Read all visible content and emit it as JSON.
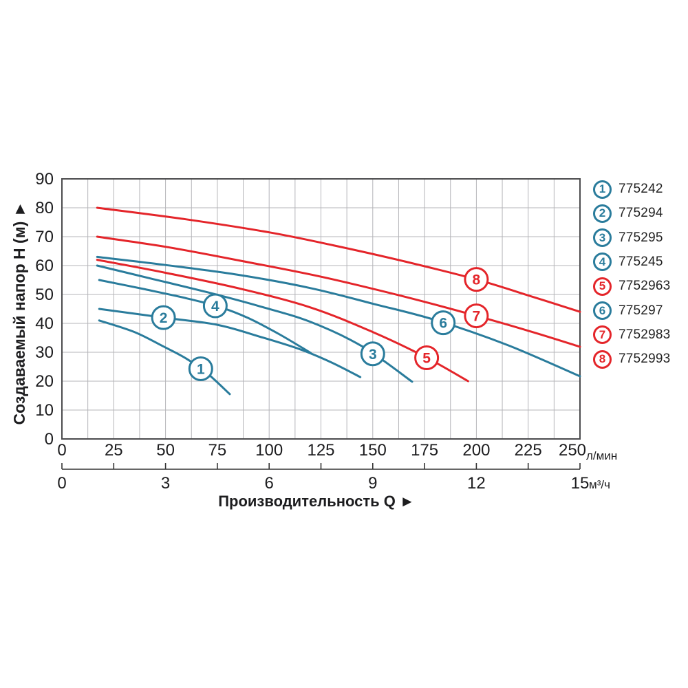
{
  "page": {
    "background": "#ffffff"
  },
  "chart_data": {
    "type": "line",
    "title": "",
    "y_axis": {
      "title": "Создаваемый напор H (м) ►",
      "range": [
        0,
        90
      ],
      "tick_step": 10,
      "ticks": [
        0,
        10,
        20,
        30,
        40,
        50,
        60,
        70,
        80,
        90
      ],
      "grid": true
    },
    "x_axis": {
      "title": "Производительность Q ►",
      "primary": {
        "unit": "л/мин",
        "range": [
          0,
          250
        ],
        "tick_step": 25,
        "ticks": [
          0,
          25,
          50,
          75,
          100,
          125,
          150,
          175,
          200,
          225,
          250
        ],
        "minor_grid_step": 12.5
      },
      "secondary": {
        "unit": "м³/ч",
        "range": [
          0,
          15
        ],
        "labeled_ticks": [
          0,
          3,
          6,
          9,
          12,
          15
        ],
        "minor_tick_step": 1.5
      }
    },
    "legend_position": "right",
    "series": [
      {
        "num": 1,
        "article": "775242",
        "color_key": "teal",
        "marker_q": 67,
        "points_lmin_m": [
          [
            18,
            41
          ],
          [
            35,
            37
          ],
          [
            49,
            32
          ],
          [
            60,
            27.8
          ],
          [
            70,
            22.8
          ],
          [
            81,
            15.5
          ]
        ]
      },
      {
        "num": 2,
        "article": "775294",
        "color_key": "teal",
        "marker_q": 49,
        "points_lmin_m": [
          [
            18,
            45
          ],
          [
            49,
            42
          ],
          [
            75,
            39.5
          ],
          [
            95,
            35.5
          ],
          [
            115,
            31
          ],
          [
            130,
            26.5
          ],
          [
            144,
            21.4
          ]
        ]
      },
      {
        "num": 3,
        "article": "775295",
        "color_key": "teal",
        "marker_q": 150,
        "points_lmin_m": [
          [
            17,
            60
          ],
          [
            43,
            55.5
          ],
          [
            70,
            50.8
          ],
          [
            95,
            46
          ],
          [
            120,
            40.5
          ],
          [
            145,
            32
          ],
          [
            169,
            19.8
          ]
        ]
      },
      {
        "num": 4,
        "article": "775245",
        "color_key": "teal",
        "marker_q": 74,
        "points_lmin_m": [
          [
            18,
            55
          ],
          [
            40,
            51.8
          ],
          [
            60,
            48.7
          ],
          [
            76,
            45.7
          ],
          [
            90,
            41.8
          ],
          [
            105,
            36.2
          ],
          [
            120,
            29.8
          ]
        ]
      },
      {
        "num": 5,
        "article": "7752963",
        "color_key": "red",
        "marker_q": 176,
        "points_lmin_m": [
          [
            17,
            62
          ],
          [
            50,
            57.5
          ],
          [
            86,
            52
          ],
          [
            120,
            45.5
          ],
          [
            150,
            37
          ],
          [
            175,
            28.5
          ],
          [
            196,
            20
          ]
        ]
      },
      {
        "num": 6,
        "article": "775297",
        "color_key": "teal",
        "marker_q": 184,
        "points_lmin_m": [
          [
            17,
            63
          ],
          [
            50,
            60.2
          ],
          [
            86,
            56.7
          ],
          [
            120,
            52.2
          ],
          [
            150,
            46.8
          ],
          [
            180,
            41.2
          ],
          [
            215,
            32.5
          ],
          [
            250,
            21.7
          ]
        ]
      },
      {
        "num": 7,
        "article": "7752983",
        "color_key": "red",
        "marker_q": 200,
        "points_lmin_m": [
          [
            17,
            70
          ],
          [
            50,
            66.5
          ],
          [
            86,
            61.7
          ],
          [
            126,
            56
          ],
          [
            165,
            49.3
          ],
          [
            200,
            42.6
          ],
          [
            228,
            36.8
          ],
          [
            250,
            31.9
          ]
        ]
      },
      {
        "num": 8,
        "article": "7752993",
        "color_key": "red",
        "marker_q": 200,
        "points_lmin_m": [
          [
            17,
            80
          ],
          [
            60,
            76
          ],
          [
            100,
            71.5
          ],
          [
            131,
            67
          ],
          [
            165,
            61.5
          ],
          [
            200,
            55.2
          ],
          [
            228,
            49
          ],
          [
            250,
            44
          ]
        ]
      }
    ],
    "colors": {
      "teal": "#2a7c9c",
      "red": "#e4252a",
      "grid": "#b4b4b8",
      "frame": "#4b4b4d",
      "text": "#1d1d1f"
    }
  }
}
